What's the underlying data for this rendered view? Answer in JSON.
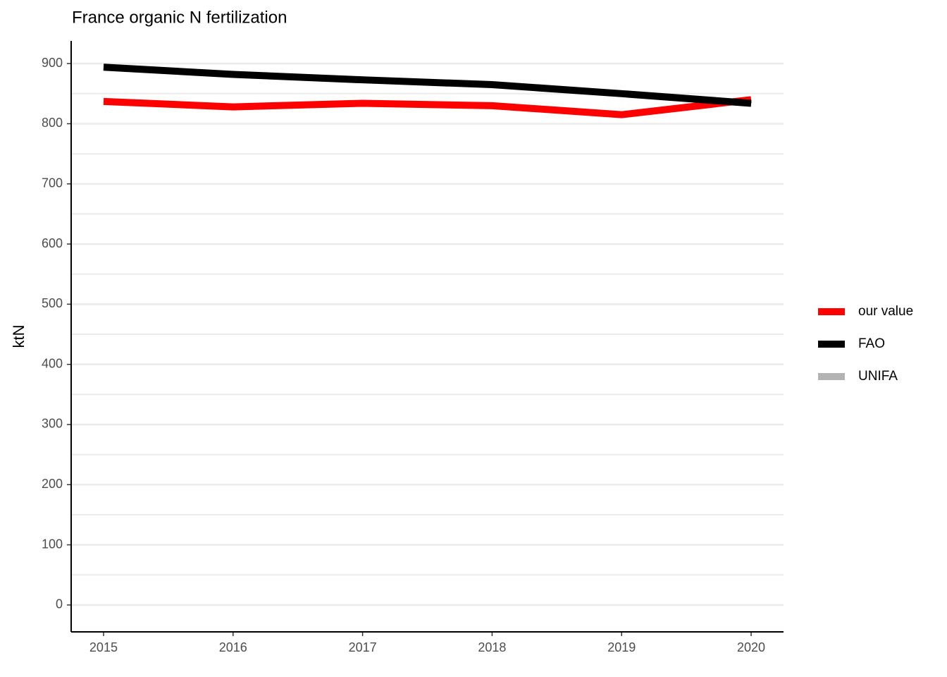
{
  "chart_data": {
    "type": "line",
    "title": "France organic N fertilization",
    "ylabel": "ktN",
    "x": [
      2015,
      2016,
      2017,
      2018,
      2019,
      2020
    ],
    "series": [
      {
        "name": "our value",
        "color": "#ff0000",
        "values": [
          837,
          828,
          834,
          830,
          815,
          840
        ]
      },
      {
        "name": "FAO",
        "color": "#000000",
        "values": [
          894,
          882,
          873,
          865,
          850,
          834
        ]
      },
      {
        "name": "UNIFA",
        "color": "#b3b3b3",
        "values": [
          null,
          null,
          null,
          null,
          null,
          null
        ]
      }
    ],
    "xlim": [
      2014.75,
      2020.25
    ],
    "xticks": [
      2015,
      2016,
      2017,
      2018,
      2019,
      2020
    ],
    "ylim": [
      -44.7,
      937.7
    ],
    "yticks": [
      0,
      100,
      200,
      300,
      400,
      500,
      600,
      700,
      800,
      900
    ],
    "y_minor_ticks": [
      50,
      150,
      250,
      350,
      450,
      550,
      650,
      750,
      850
    ],
    "grid": true,
    "legend": "right"
  }
}
